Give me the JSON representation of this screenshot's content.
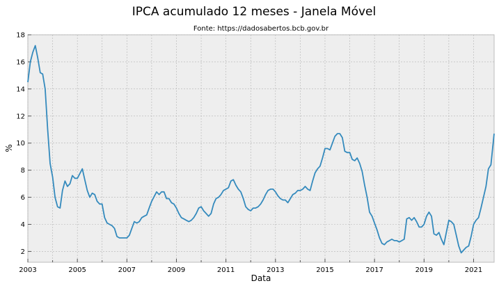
{
  "chart_data": {
    "type": "line",
    "title": "IPCA acumulado 12 meses - Janela Móvel",
    "subtitle": "Fonte: https://dadosabertos.bcb.gov.br",
    "xlabel": "Data",
    "ylabel": "%",
    "xlim": [
      2003.0,
      2021.83
    ],
    "ylim": [
      1.2,
      18
    ],
    "grid": true,
    "line_color": "#348abd",
    "background_color": "#eeeeee",
    "x_ticks": [
      {
        "value": 2003,
        "label": "2003"
      },
      {
        "value": 2005,
        "label": "2005"
      },
      {
        "value": 2007,
        "label": "2007"
      },
      {
        "value": 2009,
        "label": "2009"
      },
      {
        "value": 2011,
        "label": "2011"
      },
      {
        "value": 2013,
        "label": "2013"
      },
      {
        "value": 2015,
        "label": "2015"
      },
      {
        "value": 2017,
        "label": "2017"
      },
      {
        "value": 2019,
        "label": "2019"
      },
      {
        "value": 2021,
        "label": "2021"
      }
    ],
    "x_minor_ticks": [
      2004,
      2006,
      2008,
      2010,
      2012,
      2014,
      2016,
      2018,
      2020
    ],
    "y_ticks": [
      {
        "value": 2,
        "label": "2"
      },
      {
        "value": 4,
        "label": "4"
      },
      {
        "value": 6,
        "label": "6"
      },
      {
        "value": 8,
        "label": "8"
      },
      {
        "value": 10,
        "label": "10"
      },
      {
        "value": 12,
        "label": "12"
      },
      {
        "value": 14,
        "label": "14"
      },
      {
        "value": 16,
        "label": "16"
      },
      {
        "value": 18,
        "label": "18"
      }
    ],
    "series": [
      {
        "x": [
          2003.0,
          2003.1,
          2003.2,
          2003.3,
          2003.4,
          2003.5,
          2003.6,
          2003.7,
          2003.8,
          2003.9,
          2004.0,
          2004.1,
          2004.2,
          2004.3,
          2004.4,
          2004.5,
          2004.6,
          2004.7,
          2004.8,
          2004.9,
          2005.0,
          2005.2,
          2005.3,
          2005.4,
          2005.5,
          2005.6,
          2005.7,
          2005.8,
          2005.9,
          2006.0,
          2006.1,
          2006.2,
          2006.3,
          2006.4,
          2006.5,
          2006.6,
          2006.7,
          2006.8,
          2006.9,
          2007.0,
          2007.1,
          2007.2,
          2007.3,
          2007.4,
          2007.5,
          2007.6,
          2007.7,
          2007.8,
          2007.9,
          2008.0,
          2008.2,
          2008.3,
          2008.4,
          2008.5,
          2008.6,
          2008.7,
          2008.8,
          2008.9,
          2009.0,
          2009.1,
          2009.2,
          2009.3,
          2009.4,
          2009.5,
          2009.6,
          2009.7,
          2009.8,
          2009.9,
          2010.0,
          2010.1,
          2010.2,
          2010.3,
          2010.4,
          2010.5,
          2010.6,
          2010.7,
          2010.8,
          2010.9,
          2011.0,
          2011.1,
          2011.2,
          2011.3,
          2011.4,
          2011.5,
          2011.6,
          2011.7,
          2011.8,
          2011.9,
          2012.0,
          2012.1,
          2012.2,
          2012.3,
          2012.4,
          2012.5,
          2012.6,
          2012.7,
          2012.8,
          2012.9,
          2013.0,
          2013.1,
          2013.2,
          2013.3,
          2013.4,
          2013.5,
          2013.6,
          2013.7,
          2013.8,
          2013.9,
          2014.0,
          2014.1,
          2014.2,
          2014.3,
          2014.4,
          2014.5,
          2014.6,
          2014.7,
          2014.8,
          2014.9,
          2015.0,
          2015.1,
          2015.2,
          2015.3,
          2015.4,
          2015.5,
          2015.6,
          2015.7,
          2015.8,
          2015.9,
          2016.0,
          2016.1,
          2016.2,
          2016.3,
          2016.4,
          2016.5,
          2016.6,
          2016.7,
          2016.8,
          2016.9,
          2017.0,
          2017.1,
          2017.2,
          2017.3,
          2017.4,
          2017.5,
          2017.6,
          2017.7,
          2017.8,
          2017.9,
          2018.0,
          2018.1,
          2018.2,
          2018.3,
          2018.4,
          2018.5,
          2018.6,
          2018.7,
          2018.8,
          2018.9,
          2019.0,
          2019.1,
          2019.2,
          2019.3,
          2019.4,
          2019.5,
          2019.6,
          2019.7,
          2019.8,
          2019.9,
          2020.0,
          2020.1,
          2020.2,
          2020.3,
          2020.4,
          2020.5,
          2020.6,
          2020.7,
          2020.8,
          2020.9,
          2021.0,
          2021.1,
          2021.2,
          2021.3,
          2021.4,
          2021.5,
          2021.6,
          2021.7,
          2021.83
        ],
        "values": [
          14.5,
          16.0,
          16.7,
          17.2,
          16.3,
          15.2,
          15.1,
          14.0,
          11.0,
          8.5,
          7.5,
          6.0,
          5.3,
          5.2,
          6.5,
          7.2,
          6.8,
          7.0,
          7.6,
          7.4,
          7.4,
          8.1,
          7.3,
          6.5,
          6.0,
          6.3,
          6.2,
          5.7,
          5.5,
          5.5,
          4.5,
          4.1,
          4.0,
          3.9,
          3.7,
          3.1,
          3.0,
          3.0,
          3.0,
          3.0,
          3.2,
          3.7,
          4.2,
          4.1,
          4.2,
          4.5,
          4.6,
          4.7,
          5.2,
          5.7,
          6.4,
          6.2,
          6.4,
          6.4,
          5.9,
          5.9,
          5.6,
          5.5,
          5.2,
          4.8,
          4.5,
          4.4,
          4.3,
          4.2,
          4.3,
          4.5,
          4.8,
          5.2,
          5.3,
          5.0,
          4.8,
          4.6,
          4.8,
          5.5,
          5.9,
          6.0,
          6.2,
          6.5,
          6.6,
          6.7,
          7.2,
          7.3,
          6.9,
          6.6,
          6.4,
          5.9,
          5.3,
          5.1,
          5.0,
          5.2,
          5.2,
          5.3,
          5.5,
          5.8,
          6.2,
          6.5,
          6.6,
          6.6,
          6.4,
          6.1,
          5.9,
          5.8,
          5.8,
          5.6,
          5.9,
          6.2,
          6.3,
          6.5,
          6.5,
          6.6,
          6.8,
          6.6,
          6.5,
          7.2,
          7.8,
          8.1,
          8.3,
          8.9,
          9.6,
          9.6,
          9.5,
          10.0,
          10.5,
          10.7,
          10.7,
          10.4,
          9.4,
          9.3,
          9.3,
          8.8,
          8.7,
          8.9,
          8.5,
          7.9,
          6.9,
          6.0,
          4.9,
          4.6,
          4.1,
          3.6,
          3.0,
          2.6,
          2.5,
          2.7,
          2.8,
          2.9,
          2.8,
          2.8,
          2.7,
          2.8,
          2.9,
          4.4,
          4.5,
          4.3,
          4.5,
          4.2,
          3.8,
          3.8,
          4.0,
          4.6,
          4.9,
          4.6,
          3.3,
          3.2,
          3.4,
          2.9,
          2.5,
          3.4,
          4.3,
          4.2,
          4.0,
          3.2,
          2.4,
          1.9,
          2.1,
          2.3,
          2.4,
          3.1,
          4.0,
          4.3,
          4.5,
          5.2,
          6.0,
          6.8,
          8.1,
          8.4,
          10.7
        ]
      }
    ]
  }
}
